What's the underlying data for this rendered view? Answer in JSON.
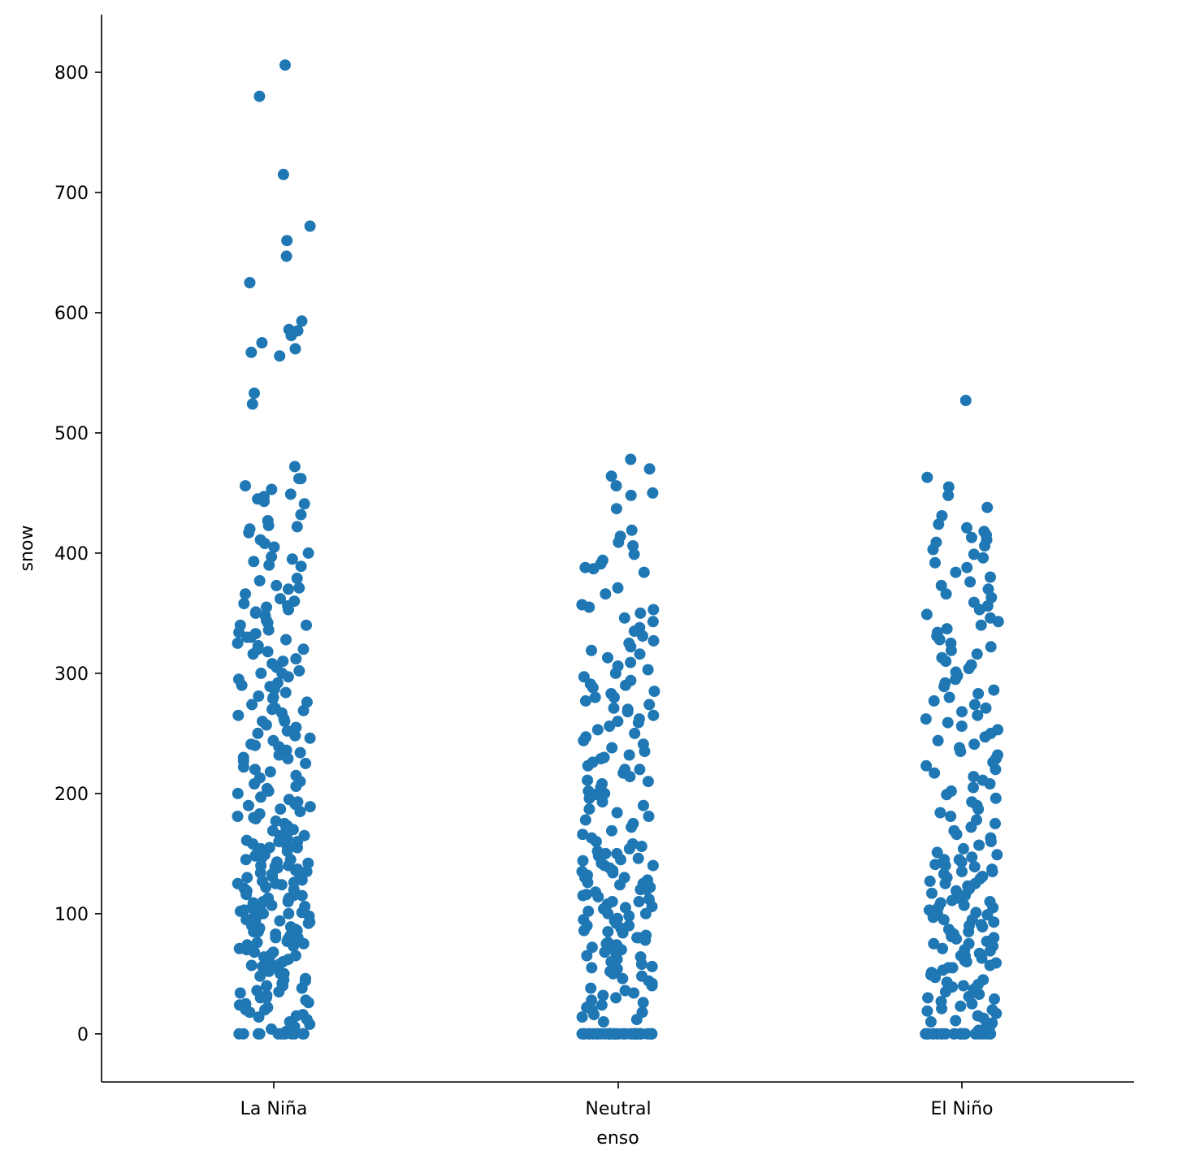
{
  "chart_data": {
    "type": "scatter",
    "subtype": "strip",
    "title": "",
    "xlabel": "enso",
    "ylabel": "snow",
    "categories": [
      "La Niña",
      "Neutral",
      "El Niño"
    ],
    "y_ticks": [
      0,
      100,
      200,
      300,
      400,
      500,
      600,
      700,
      800
    ],
    "ylim": [
      -40,
      848
    ],
    "grid": false,
    "legend": "none",
    "point_color": "#1f77b4",
    "series": [
      {
        "category": "La Niña",
        "values": [
          806,
          780,
          715,
          672,
          660,
          647,
          625,
          593,
          586,
          585,
          581,
          575,
          570,
          567,
          564,
          533,
          524,
          472,
          462,
          462,
          456,
          453,
          449,
          447,
          445,
          443,
          441,
          432,
          427,
          423,
          422,
          420,
          417,
          411,
          408,
          405,
          400,
          397,
          395,
          393,
          390,
          389,
          379,
          377,
          373,
          371,
          370,
          366,
          362,
          358,
          356,
          355,
          353,
          351,
          348,
          344,
          342,
          340,
          336,
          334,
          333,
          330,
          328,
          325,
          323,
          320,
          318,
          316,
          312,
          308,
          305,
          302,
          300,
          297,
          295,
          292,
          289,
          287,
          284,
          281,
          279,
          276,
          274,
          271,
          269,
          267,
          265,
          262,
          260,
          257,
          255,
          252,
          250,
          248,
          246,
          244,
          241,
          239,
          236,
          234,
          232,
          229,
          227,
          225,
          222,
          220,
          218,
          215,
          213,
          210,
          208,
          206,
          204,
          202,
          200,
          197,
          195,
          193,
          191,
          189,
          187,
          185,
          183,
          181,
          179,
          177,
          175,
          173,
          171,
          169,
          167,
          165,
          163,
          161,
          160,
          158,
          157,
          155,
          154,
          152,
          151,
          149,
          148,
          146,
          145,
          143,
          142,
          140,
          139,
          137,
          136,
          134,
          133,
          131,
          130,
          128,
          127,
          125,
          124,
          122,
          121,
          119,
          118,
          116,
          115,
          113,
          112,
          110,
          109,
          107,
          106,
          104,
          103,
          101,
          100,
          98,
          97,
          95,
          94,
          92,
          91,
          89,
          88,
          86,
          85,
          83,
          82,
          80,
          79,
          77,
          76,
          74,
          73,
          71,
          70,
          68,
          66,
          64,
          62,
          60,
          58,
          56,
          54,
          52,
          50,
          48,
          46,
          44,
          42,
          40,
          38,
          36,
          34,
          32,
          30,
          28,
          26,
          24,
          22,
          20,
          18,
          16,
          14,
          12,
          10,
          8,
          6,
          4,
          2,
          0,
          0,
          0,
          0,
          0,
          0,
          0,
          0,
          0,
          0,
          0,
          0,
          155,
          145,
          135,
          125,
          115,
          105,
          95,
          85,
          75,
          65,
          150,
          140,
          130,
          120,
          110,
          100,
          90,
          80,
          160,
          170,
          180,
          190,
          230,
          240,
          260,
          270,
          280,
          290,
          300,
          310,
          320,
          330,
          340,
          350,
          360,
          55,
          45,
          35,
          25,
          15,
          60,
          50,
          40,
          30,
          20,
          165,
          138,
          126,
          113,
          102,
          93,
          87,
          78,
          68,
          57
        ],
        "points_approx": true
      },
      {
        "category": "Neutral",
        "values": [
          478,
          470,
          464,
          456,
          450,
          448,
          437,
          419,
          414,
          409,
          406,
          399,
          394,
          391,
          388,
          387,
          384,
          371,
          366,
          357,
          355,
          353,
          350,
          346,
          343,
          338,
          335,
          331,
          327,
          325,
          322,
          319,
          316,
          313,
          309,
          306,
          303,
          300,
          297,
          294,
          291,
          288,
          285,
          283,
          280,
          277,
          274,
          271,
          268,
          265,
          262,
          259,
          256,
          253,
          250,
          247,
          244,
          241,
          238,
          235,
          232,
          229,
          226,
          223,
          220,
          217,
          214,
          211,
          208,
          205,
          202,
          199,
          196,
          193,
          190,
          187,
          184,
          181,
          178,
          175,
          172,
          169,
          166,
          163,
          160,
          158,
          156,
          154,
          152,
          150,
          148,
          146,
          144,
          142,
          140,
          138,
          136,
          134,
          132,
          130,
          128,
          126,
          124,
          122,
          120,
          118,
          116,
          114,
          112,
          110,
          108,
          106,
          104,
          102,
          100,
          98,
          96,
          94,
          92,
          90,
          88,
          86,
          84,
          82,
          80,
          78,
          76,
          74,
          72,
          70,
          68,
          66,
          64,
          62,
          60,
          58,
          56,
          54,
          52,
          50,
          48,
          46,
          44,
          42,
          40,
          38,
          36,
          34,
          32,
          30,
          28,
          26,
          24,
          22,
          20,
          18,
          16,
          14,
          12,
          10,
          0,
          0,
          0,
          0,
          0,
          0,
          0,
          0,
          0,
          0,
          0,
          0,
          0,
          0,
          0,
          0,
          0,
          0,
          0,
          0,
          0,
          0,
          0,
          0,
          0,
          0,
          0,
          0,
          0,
          0,
          0,
          0,
          0,
          0,
          0,
          0,
          0,
          0,
          0,
          0,
          145,
          135,
          125,
          115,
          105,
          95,
          85,
          75,
          65,
          55,
          150,
          140,
          130,
          120,
          110,
          100,
          90,
          80,
          70,
          60,
          230,
          220,
          210,
          200,
          290,
          280,
          270,
          260
        ],
        "points_approx": true
      },
      {
        "category": "El Niño",
        "values": [
          527,
          463,
          455,
          448,
          438,
          431,
          424,
          421,
          418,
          415,
          413,
          411,
          409,
          406,
          403,
          399,
          396,
          392,
          388,
          384,
          380,
          376,
          373,
          370,
          366,
          363,
          359,
          356,
          353,
          349,
          346,
          343,
          340,
          337,
          334,
          331,
          328,
          325,
          322,
          319,
          316,
          313,
          310,
          307,
          304,
          301,
          298,
          295,
          292,
          289,
          286,
          283,
          280,
          277,
          274,
          271,
          268,
          265,
          262,
          259,
          256,
          253,
          250,
          247,
          244,
          241,
          238,
          235,
          232,
          229,
          226,
          223,
          220,
          217,
          214,
          211,
          208,
          205,
          202,
          199,
          196,
          193,
          190,
          187,
          184,
          181,
          178,
          175,
          172,
          169,
          166,
          163,
          160,
          157,
          154,
          151,
          149,
          147,
          145,
          143,
          141,
          139,
          137,
          135,
          133,
          131,
          129,
          127,
          125,
          123,
          121,
          119,
          117,
          115,
          113,
          111,
          109,
          107,
          105,
          103,
          101,
          99,
          97,
          95,
          93,
          91,
          89,
          87,
          85,
          83,
          81,
          79,
          77,
          75,
          73,
          71,
          69,
          67,
          65,
          63,
          61,
          59,
          57,
          55,
          53,
          51,
          49,
          47,
          45,
          43,
          41,
          39,
          37,
          35,
          33,
          31,
          29,
          27,
          25,
          23,
          21,
          19,
          17,
          15,
          13,
          11,
          9,
          7,
          5,
          3,
          0,
          0,
          0,
          0,
          0,
          0,
          0,
          0,
          0,
          0,
          0,
          0,
          0,
          0,
          0,
          0,
          0,
          0,
          0,
          0,
          0,
          0,
          0,
          0,
          0,
          145,
          135,
          125,
          115,
          105,
          95,
          85,
          75,
          65,
          55,
          140,
          130,
          120,
          110,
          100,
          90,
          80,
          70,
          60,
          50,
          40,
          30,
          20,
          10
        ],
        "points_approx": true
      }
    ]
  }
}
